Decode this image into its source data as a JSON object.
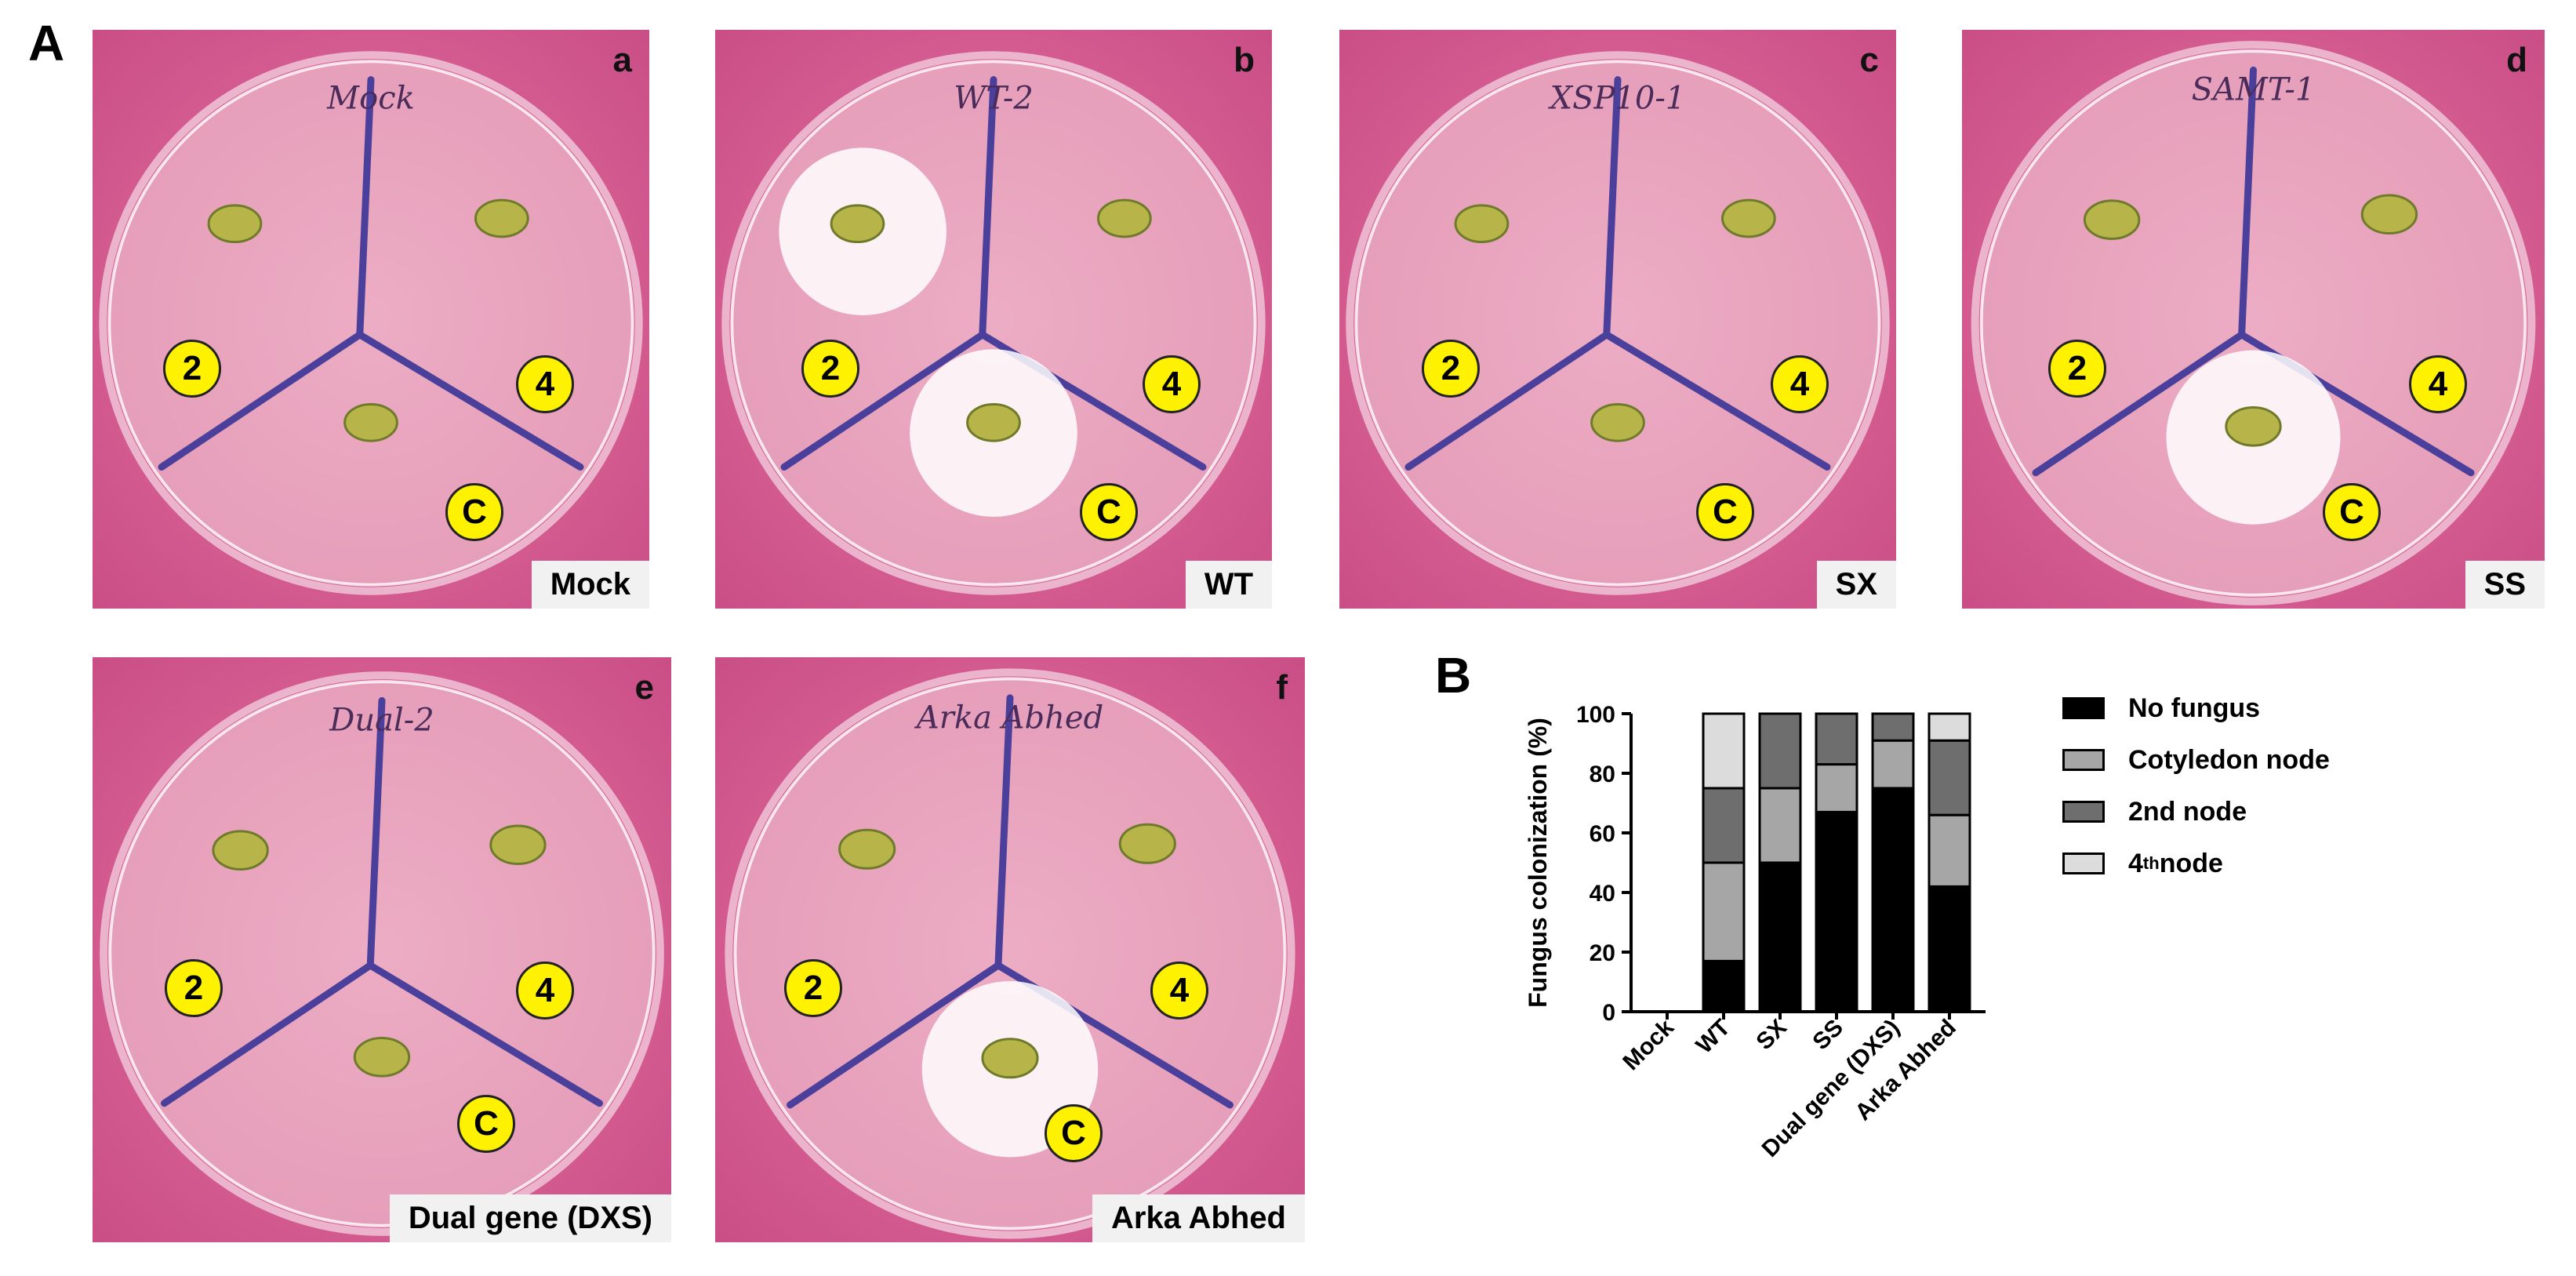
{
  "figure": {
    "panel_a_label": "A",
    "panel_b_label": "B",
    "plates": [
      {
        "letter": "a",
        "condition": "Mock",
        "handwriting": "Mock",
        "markers": [
          "2",
          "4",
          "C"
        ],
        "fungus": []
      },
      {
        "letter": "b",
        "condition": "WT",
        "handwriting": "WT-2",
        "markers": [
          "2",
          "4",
          "C"
        ],
        "fungus": [
          "2",
          "C"
        ]
      },
      {
        "letter": "c",
        "condition": "SX",
        "handwriting": "XSP10-1",
        "markers": [
          "2",
          "4",
          "C"
        ],
        "fungus": []
      },
      {
        "letter": "d",
        "condition": "SS",
        "handwriting": "SAMT-1",
        "markers": [
          "2",
          "4",
          "C"
        ],
        "fungus": [
          "C"
        ]
      },
      {
        "letter": "e",
        "condition": "Dual gene (DXS)",
        "handwriting": "Dual-2",
        "markers": [
          "2",
          "4",
          "C"
        ],
        "fungus": []
      },
      {
        "letter": "f",
        "condition": "Arka Abhed",
        "handwriting": "Arka Abhed",
        "markers": [
          "2",
          "4",
          "C"
        ],
        "fungus": [
          "C"
        ]
      }
    ]
  },
  "chart_data": {
    "type": "bar",
    "stacked": true,
    "ylabel": "Fungus colonization (%)",
    "ylim": [
      0,
      100
    ],
    "yticks": [
      0,
      20,
      40,
      60,
      80,
      100
    ],
    "categories": [
      "Mock",
      "WT",
      "SX",
      "SS",
      "Dual gene (DXS)",
      "Arka Abhed"
    ],
    "series": [
      {
        "name": "No fungus",
        "color": "#000000",
        "values": [
          0,
          17,
          50,
          67,
          75,
          42
        ]
      },
      {
        "name": "Cotyledon node",
        "color": "#a6a6a6",
        "values": [
          0,
          33,
          25,
          16,
          16,
          24
        ]
      },
      {
        "name": "2nd node",
        "color": "#6e6e6e",
        "values": [
          0,
          25,
          25,
          17,
          9,
          25
        ]
      },
      {
        "name": "4thnode",
        "color": "#dcdcdc",
        "values": [
          0,
          25,
          0,
          0,
          0,
          9
        ]
      }
    ],
    "legend": {
      "position": "right",
      "items": [
        {
          "label": "No fungus",
          "color": "#000000"
        },
        {
          "label": "Cotyledon node",
          "color": "#a6a6a6"
        },
        {
          "label": "2nd node",
          "color": "#6e6e6e"
        },
        {
          "label_main": "4",
          "label_sup": "th",
          "label_rest": "node",
          "color": "#dcdcdc"
        }
      ]
    }
  }
}
